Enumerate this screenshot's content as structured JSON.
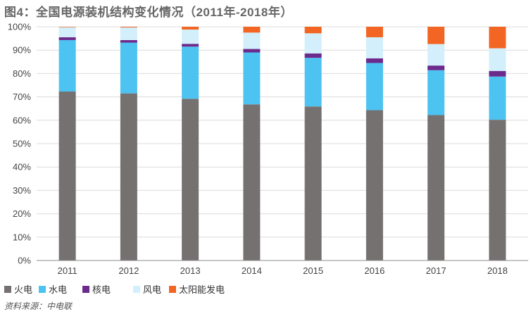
{
  "title": "图4：全国电源装机结构变化情况（2011年-2018年）",
  "source": "资料来源：中电联",
  "chart_data": {
    "type": "bar",
    "stacked": true,
    "categories": [
      "2011",
      "2012",
      "2013",
      "2014",
      "2015",
      "2016",
      "2017",
      "2018"
    ],
    "series": [
      {
        "name": "火电",
        "color": "#767171",
        "values": [
          72.3,
          71.5,
          69.2,
          66.8,
          65.9,
          64.3,
          62.2,
          60.2
        ]
      },
      {
        "name": "水电",
        "color": "#4dc3f1",
        "values": [
          22.0,
          21.7,
          22.3,
          22.2,
          20.8,
          20.2,
          19.2,
          18.5
        ]
      },
      {
        "name": "核电",
        "color": "#6c2a8c",
        "values": [
          1.2,
          1.1,
          1.2,
          1.5,
          1.9,
          2.0,
          2.0,
          2.4
        ]
      },
      {
        "name": "风电",
        "color": "#d2effb",
        "values": [
          4.3,
          5.4,
          6.1,
          7.0,
          8.6,
          9.0,
          9.2,
          9.7
        ]
      },
      {
        "name": "太阳能发电",
        "color": "#f26522",
        "values": [
          0.2,
          0.3,
          1.2,
          2.5,
          2.8,
          4.5,
          7.4,
          9.2
        ]
      }
    ],
    "y_ticks": [
      "0%",
      "10%",
      "20%",
      "30%",
      "40%",
      "50%",
      "60%",
      "70%",
      "80%",
      "90%",
      "100%"
    ],
    "ylim": [
      0,
      100
    ],
    "grid": true,
    "legend": "bottom-left"
  }
}
